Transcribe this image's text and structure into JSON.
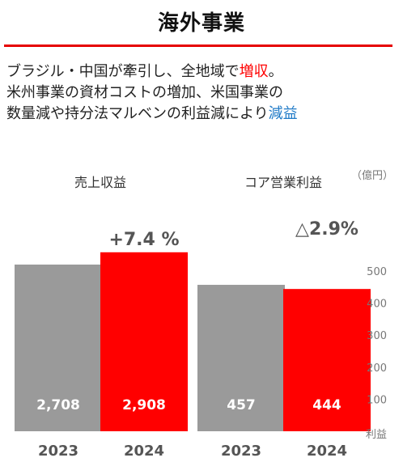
{
  "page": {
    "title": "海外事業",
    "summary": [
      [
        {
          "text": "ブラジル・中国が牽引し、全地域で",
          "style": "normal"
        },
        {
          "text": "増収",
          "style": "red"
        },
        {
          "text": "。",
          "style": "normal"
        }
      ],
      [
        {
          "text": "米州事業の資材コストの増加、米国事業の",
          "style": "normal"
        }
      ],
      [
        {
          "text": "数量減や持分法マルベンの利益減により",
          "style": "normal"
        },
        {
          "text": "減益",
          "style": "blue"
        }
      ]
    ]
  },
  "colors": {
    "accent_red": "#ff0000",
    "rule_red": "#e60000",
    "bar_gray": "#9a9a9a",
    "bar_red": "#ff0000",
    "decrease_blue": "#1f7ac7"
  },
  "chart_data": [
    {
      "type": "bar",
      "title": "売上収益",
      "categories": [
        "2023",
        "2024"
      ],
      "values": [
        2708,
        2908
      ],
      "value_labels": [
        "2,708",
        "2,908"
      ],
      "change_label": "+7.4 %",
      "bar_colors": [
        "#9a9a9a",
        "#ff0000"
      ],
      "ylim": [
        0,
        3350
      ]
    },
    {
      "type": "bar",
      "title": "コア営業利益",
      "categories": [
        "2023",
        "2024"
      ],
      "values": [
        457,
        444
      ],
      "value_labels": [
        "457",
        "444"
      ],
      "change_label": "△2.9%",
      "bar_colors": [
        "#9a9a9a",
        "#ff0000"
      ],
      "unit": "（億円）",
      "yticks": [
        100,
        200,
        300,
        400,
        500
      ],
      "ylim": [
        0,
        525
      ],
      "axis_footer": "利益"
    }
  ]
}
